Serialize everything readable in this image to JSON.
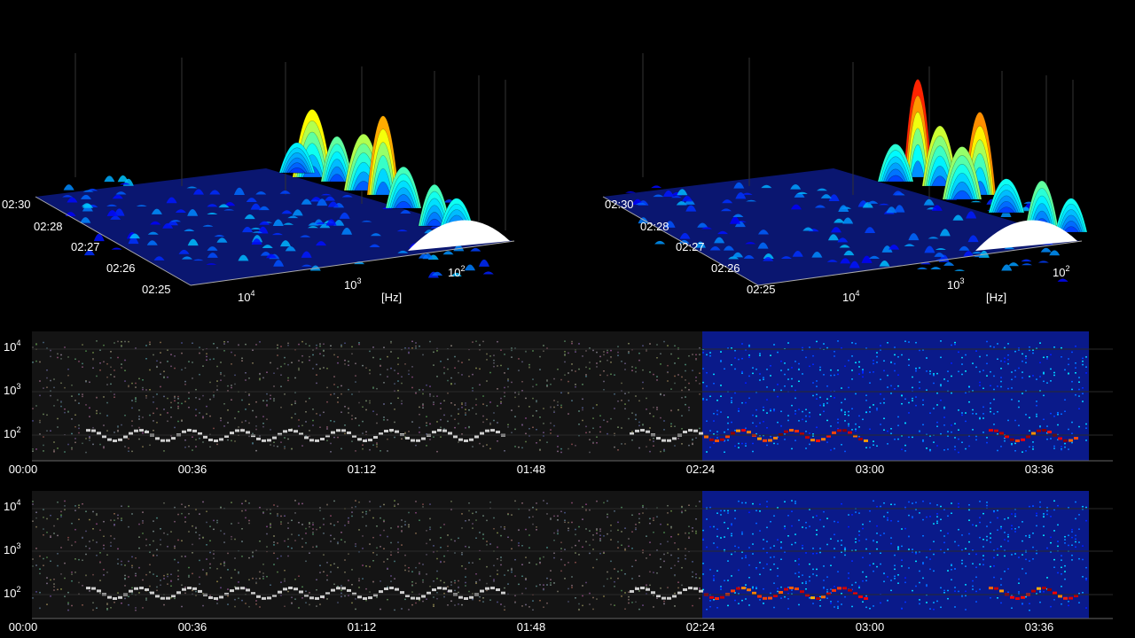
{
  "chart_data": [
    {
      "type": "surface",
      "panel": "left-3d",
      "time_ticks": [
        "02:30",
        "02:28",
        "02:27",
        "02:26",
        "02:25"
      ],
      "freq_ticks": [
        {
          "base": "10",
          "exp": "4"
        },
        {
          "base": "10",
          "exp": "3"
        },
        {
          "base": "10",
          "exp": "2"
        }
      ],
      "xlabel": "[Hz]",
      "colormap": "jet"
    },
    {
      "type": "surface",
      "panel": "right-3d",
      "time_ticks": [
        "02:30",
        "02:28",
        "02:27",
        "02:26",
        "02:25"
      ],
      "freq_ticks": [
        {
          "base": "10",
          "exp": "4"
        },
        {
          "base": "10",
          "exp": "3"
        },
        {
          "base": "10",
          "exp": "2"
        }
      ],
      "xlabel": "[Hz]",
      "colormap": "jet"
    },
    {
      "type": "heatmap",
      "panel": "spectrogram-top",
      "x_ticks": [
        "00:00",
        "00:36",
        "01:12",
        "01:48",
        "02:24",
        "03:00",
        "03:36"
      ],
      "y_ticks": [
        {
          "base": "10",
          "exp": "4"
        },
        {
          "base": "10",
          "exp": "3"
        },
        {
          "base": "10",
          "exp": "2"
        }
      ],
      "played_region_color": "grayscale",
      "upcoming_region_color": "jet",
      "playhead": "02:24"
    },
    {
      "type": "heatmap",
      "panel": "spectrogram-bottom",
      "x_ticks": [
        "00:00",
        "00:36",
        "01:12",
        "01:48",
        "02:24",
        "03:00",
        "03:36"
      ],
      "y_ticks": [
        {
          "base": "10",
          "exp": "4"
        },
        {
          "base": "10",
          "exp": "3"
        },
        {
          "base": "10",
          "exp": "2"
        }
      ],
      "played_region_color": "grayscale",
      "upcoming_region_color": "jet",
      "playhead": "02:24"
    }
  ]
}
